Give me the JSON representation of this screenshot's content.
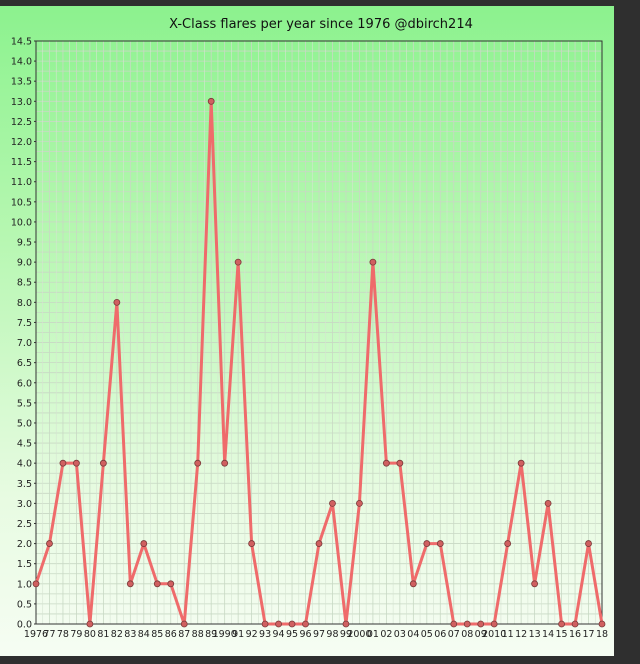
{
  "chart_data": {
    "type": "line",
    "title": "X-Class flares per year since 1976 @dbirch214",
    "xlabel": "",
    "ylabel": "",
    "ylim": [
      0,
      14.5
    ],
    "ytick_step": 0.5,
    "grid": true,
    "line_color": "#ef6b6b",
    "marker_color": "#d06060",
    "categories": [
      "1976",
      "77",
      "78",
      "79",
      "80",
      "81",
      "82",
      "83",
      "84",
      "85",
      "86",
      "87",
      "88",
      "89",
      "1990",
      "91",
      "92",
      "93",
      "94",
      "95",
      "96",
      "97",
      "98",
      "99",
      "2000",
      "01",
      "02",
      "03",
      "04",
      "05",
      "06",
      "07",
      "08",
      "09",
      "2010",
      "11",
      "12",
      "13",
      "14",
      "15",
      "16",
      "17",
      "18"
    ],
    "series": [
      {
        "values": [
          1,
          2,
          4,
          4,
          0,
          4,
          8,
          1,
          2,
          1,
          1,
          0,
          4,
          13,
          4,
          9,
          2,
          0,
          0,
          0,
          0,
          2,
          3,
          0,
          3,
          9,
          4,
          4,
          1,
          2,
          2,
          0,
          0,
          0,
          0,
          2,
          4,
          1,
          3,
          0,
          0,
          2,
          0
        ]
      }
    ]
  }
}
